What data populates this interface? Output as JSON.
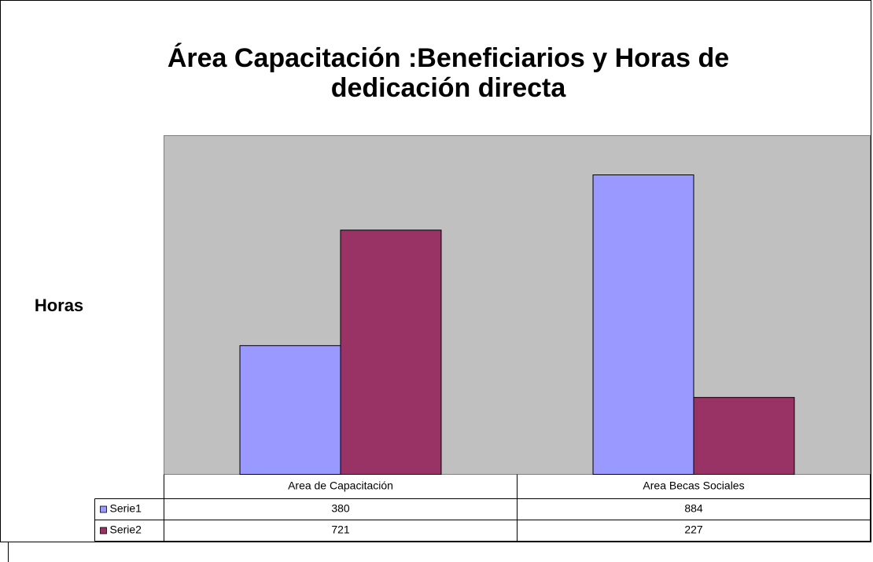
{
  "chart_data": {
    "type": "bar",
    "title": [
      "Área Capacitación :Beneficiarios  y Horas de",
      "dedicación directa"
    ],
    "y_label": "Horas",
    "categories": [
      "Area de Capacitación",
      "Area Becas Sociales"
    ],
    "series": [
      {
        "name": "Serie1",
        "color": "#9999ff",
        "values": [
          380,
          884
        ]
      },
      {
        "name": "Serie2",
        "color": "#993366",
        "values": [
          721,
          227
        ]
      }
    ],
    "ylim": [
      0,
      1000
    ],
    "grid": false,
    "data_table": true
  }
}
